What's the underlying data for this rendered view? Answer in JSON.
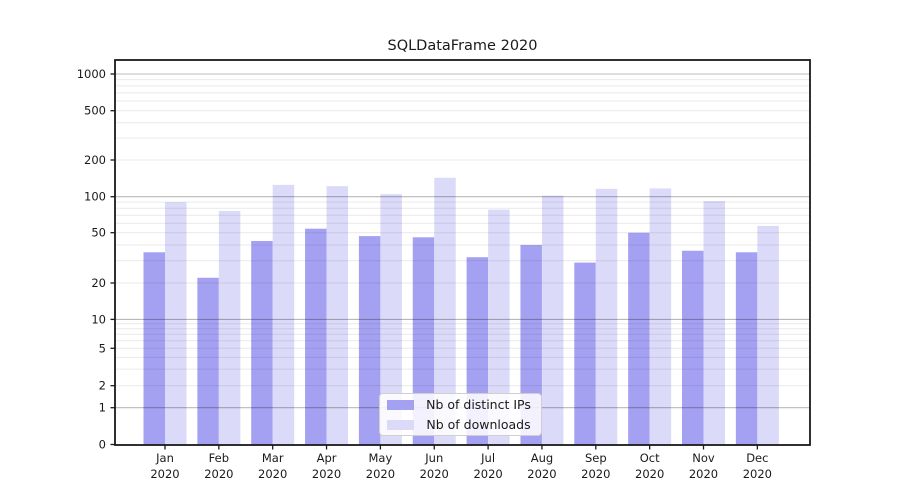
{
  "title": "SQLDataFrame 2020",
  "chart_data": {
    "type": "bar",
    "title": "SQLDataFrame 2020",
    "categories": [
      "Jan 2020",
      "Feb 2020",
      "Mar 2020",
      "Apr 2020",
      "May 2020",
      "Jun 2020",
      "Jul 2020",
      "Aug 2020",
      "Sep 2020",
      "Oct 2020",
      "Nov 2020",
      "Dec 2020"
    ],
    "month_labels": [
      "Jan",
      "Feb",
      "Mar",
      "Apr",
      "May",
      "Jun",
      "Jul",
      "Aug",
      "Sep",
      "Oct",
      "Nov",
      "Dec"
    ],
    "year_label": "2020",
    "series": [
      {
        "name": "Nb of distinct IPs",
        "color": "#a5a1f2",
        "values": [
          35,
          22,
          43,
          54,
          47,
          46,
          32,
          40,
          29,
          50,
          36,
          35
        ]
      },
      {
        "name": "Nb of downloads",
        "color": "#dcdaf9",
        "values": [
          90,
          76,
          125,
          122,
          105,
          143,
          78,
          102,
          116,
          117,
          92,
          57
        ]
      }
    ],
    "y_axis": {
      "scale": "symlog",
      "ticks": [
        0,
        1,
        2,
        5,
        10,
        20,
        50,
        100,
        200,
        500,
        1000
      ],
      "ylim": [
        0,
        1300
      ]
    },
    "grid": {
      "major_lines": [
        1,
        10,
        100,
        1000
      ],
      "minor_multiples": [
        2,
        3,
        4,
        5,
        6,
        7,
        8,
        9
      ],
      "minor_decades": [
        1,
        10,
        100
      ]
    },
    "legend_position": "lower center"
  },
  "colors": {
    "background": "#ffffff",
    "frame": "#1a1a1a",
    "text": "#1a1a1a",
    "major_grid": "#b5b5b5",
    "minor_grid": "#e9e9e9"
  }
}
